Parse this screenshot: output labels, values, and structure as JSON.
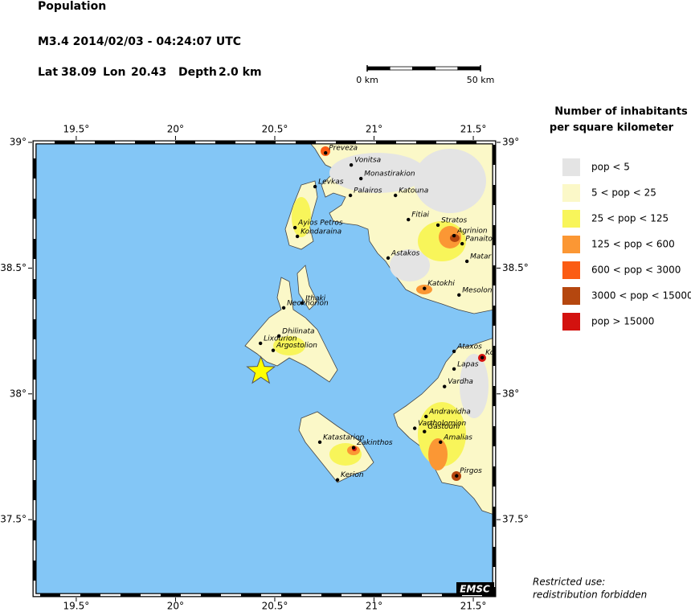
{
  "map": {
    "title": "Population",
    "event": "M3.4  2014/02/03 - 04:24:07 UTC",
    "location": {
      "lat_label": "Lat",
      "lat": 38.09,
      "lon_label": "Lon",
      "lon": 20.43,
      "depth_label": "Depth",
      "depth": "2.0 km"
    },
    "scale_bar": [
      {
        "value": 0,
        "label": "0 km"
      },
      {
        "value": 50,
        "label": "50 km"
      }
    ],
    "xlim": [
      19.29,
      21.605
    ],
    "ylim": [
      37.2,
      39
    ],
    "xticks": [
      {
        "value": 19.5,
        "label": "19.5°"
      },
      {
        "value": 20,
        "label": "20°"
      },
      {
        "value": 20.5,
        "label": "20.5°"
      },
      {
        "value": 21,
        "label": "21°"
      },
      {
        "value": 21.5,
        "label": "21.5°"
      }
    ],
    "yticks": [
      {
        "value": 39,
        "label": "39°"
      },
      {
        "value": 38.5,
        "label": "38.5°"
      },
      {
        "value": 38,
        "label": "38°"
      },
      {
        "value": 37.5,
        "label": "37.5°"
      }
    ],
    "towns": [
      {
        "name": "Preveza",
        "lon": 20.756,
        "lat": 38.958
      },
      {
        "name": "Vonitsa",
        "lon": 20.885,
        "lat": 38.91
      },
      {
        "name": "Monastirakion",
        "lon": 20.934,
        "lat": 38.856
      },
      {
        "name": "Levkas",
        "lon": 20.703,
        "lat": 38.824
      },
      {
        "name": "Palairos",
        "lon": 20.881,
        "lat": 38.789
      },
      {
        "name": "Katouna",
        "lon": 21.108,
        "lat": 38.789
      },
      {
        "name": "Fitiai",
        "lon": 21.173,
        "lat": 38.693
      },
      {
        "name": "Stratos",
        "lon": 21.322,
        "lat": 38.671
      },
      {
        "name": "Agrinion",
        "lon": 21.403,
        "lat": 38.629
      },
      {
        "name": "Panaito",
        "lon": 21.444,
        "lat": 38.597
      },
      {
        "name": "Matar",
        "lon": 21.468,
        "lat": 38.527
      },
      {
        "name": "Astakos",
        "lon": 21.071,
        "lat": 38.54
      },
      {
        "name": "Katokhi",
        "lon": 21.254,
        "lat": 38.419
      },
      {
        "name": "Mesolon",
        "lon": 21.428,
        "lat": 38.393
      },
      {
        "name": "Ayios Petros",
        "lon": 20.602,
        "lat": 38.661
      },
      {
        "name": "Kondaraina",
        "lon": 20.614,
        "lat": 38.626
      },
      {
        "name": "Ithaki",
        "lon": 20.638,
        "lat": 38.361
      },
      {
        "name": "Neokhorion",
        "lon": 20.545,
        "lat": 38.342
      },
      {
        "name": "Dhilinata",
        "lon": 20.521,
        "lat": 38.23
      },
      {
        "name": "Lixourion",
        "lon": 20.428,
        "lat": 38.201
      },
      {
        "name": "Argostolion",
        "lon": 20.492,
        "lat": 38.173
      },
      {
        "name": "Ataxos",
        "lon": 21.403,
        "lat": 38.169
      },
      {
        "name": "Ko",
        "lon": 21.545,
        "lat": 38.144
      },
      {
        "name": "Lapas",
        "lon": 21.403,
        "lat": 38.099
      },
      {
        "name": "Vardha",
        "lon": 21.355,
        "lat": 38.029
      },
      {
        "name": "Andravidha",
        "lon": 21.262,
        "lat": 37.91
      },
      {
        "name": "Vartholomion",
        "lon": 21.205,
        "lat": 37.863
      },
      {
        "name": "Gastouni",
        "lon": 21.254,
        "lat": 37.85
      },
      {
        "name": "Amalias",
        "lon": 21.335,
        "lat": 37.808
      },
      {
        "name": "Pirgos",
        "lon": 21.416,
        "lat": 37.674
      },
      {
        "name": "Katastarion",
        "lon": 20.727,
        "lat": 37.808
      },
      {
        "name": "Zakinthos",
        "lon": 20.897,
        "lat": 37.786
      },
      {
        "name": "Kerion",
        "lon": 20.816,
        "lat": 37.658
      }
    ],
    "legend": {
      "title": [
        "Number of inhabitants",
        "per square kilometer"
      ],
      "items": [
        {
          "label": "pop < 5",
          "color": "#e4e4e4"
        },
        {
          "label": "5 < pop < 25",
          "color": "#fbf8c8"
        },
        {
          "label": "25 < pop < 125",
          "color": "#f8f55a"
        },
        {
          "label": "125 < pop < 600",
          "color": "#fb9734"
        },
        {
          "label": "600 < pop < 3000",
          "color": "#fb5c14"
        },
        {
          "label": "3000 < pop < 15000",
          "color": "#b5470f"
        },
        {
          "label": "pop > 15000",
          "color": "#d3120f"
        }
      ]
    },
    "logo": "EMSC",
    "notice": [
      "Restricted use:",
      "redistribution forbidden"
    ]
  }
}
